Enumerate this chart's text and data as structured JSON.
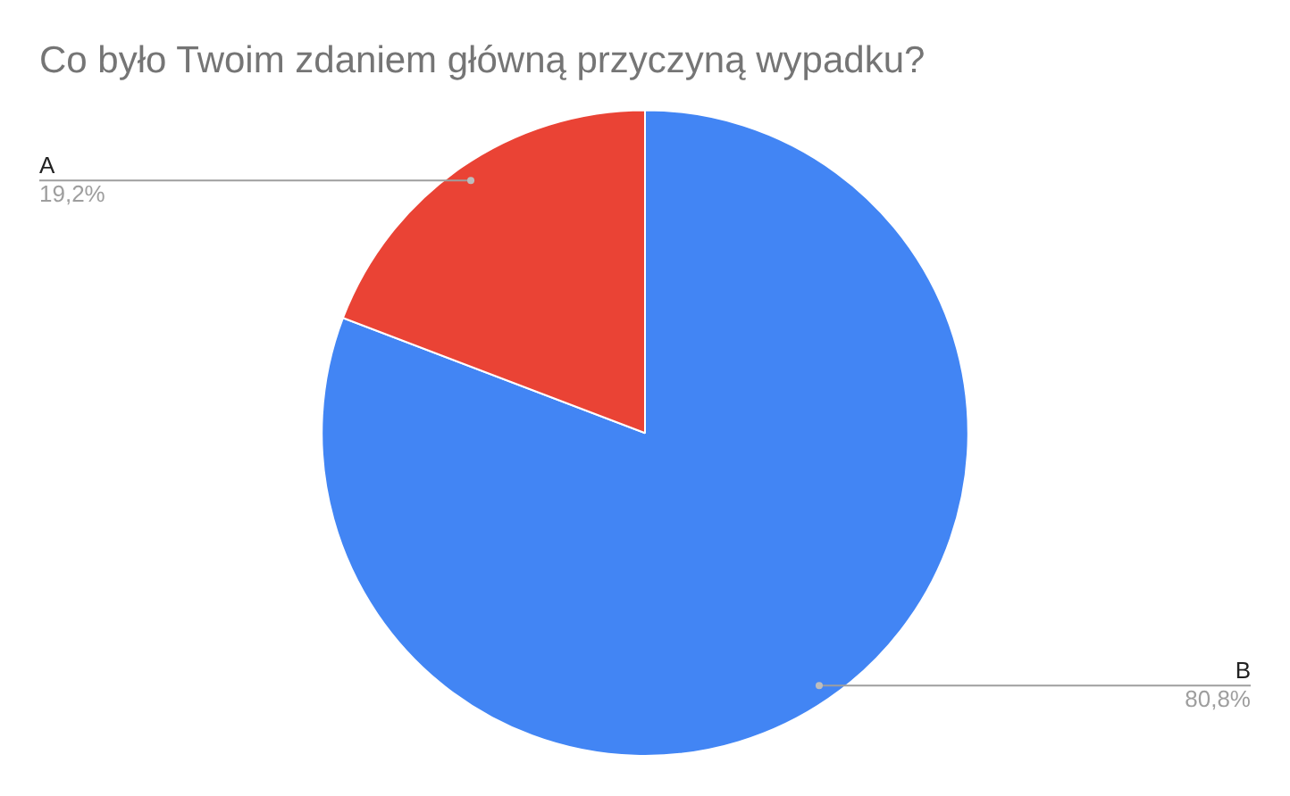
{
  "chart_data": {
    "type": "pie",
    "title": "Co było Twoim zdaniem główną przyczyną wypadku?",
    "categories": [
      "B",
      "A"
    ],
    "values": [
      80.8,
      19.2
    ],
    "value_labels": [
      "80,8%",
      "19,2%"
    ],
    "colors": [
      "#4285f4",
      "#ea4335"
    ],
    "legend": false
  }
}
